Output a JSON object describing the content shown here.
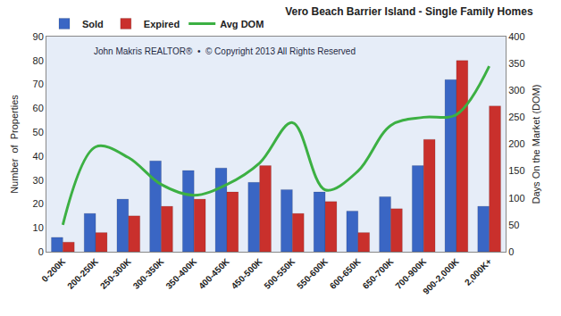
{
  "chart_data": {
    "type": "bar",
    "title": "Vero Beach Barrier Island - Single Family Homes",
    "annotations": [
      "John Makris REALTOR®  •  © Copyright 2013 All Rights Reserved"
    ],
    "y_label": "Number  of  Properties",
    "y2_label": "Days On the Market (DOM)",
    "categories": [
      "0-200K",
      "200-250K",
      "250-300K",
      "300-350K",
      "350-400K",
      "400-450K",
      "450-500K",
      "500-550K",
      "550-600K",
      "600-650K",
      "650-700K",
      "700-900K",
      "900-2,000K",
      "2,000K+"
    ],
    "series": [
      {
        "name": "Sold",
        "type": "bar",
        "color": "#3a66c4",
        "values": [
          6,
          16,
          22,
          38,
          34,
          35,
          29,
          26,
          25,
          17,
          23,
          36,
          72,
          19
        ]
      },
      {
        "name": "Expired",
        "type": "bar",
        "color": "#c9302c",
        "values": [
          4,
          8,
          15,
          19,
          22,
          25,
          36,
          16,
          21,
          8,
          18,
          47,
          80,
          61
        ]
      },
      {
        "name": "Avg DOM",
        "type": "line",
        "axis": "y2",
        "color": "#3cb043",
        "line_style": "solid",
        "values": [
          50,
          195,
          175,
          125,
          105,
          125,
          165,
          240,
          115,
          150,
          235,
          250,
          255,
          345
        ]
      }
    ],
    "ylim": [
      0,
      90
    ],
    "yticks": [
      0,
      10,
      20,
      30,
      40,
      50,
      60,
      70,
      80,
      90
    ],
    "y2lim": [
      0,
      400
    ],
    "y2ticks": [
      0,
      50,
      100,
      150,
      200,
      250,
      300,
      350,
      400
    ],
    "grid": false,
    "legend": "top left"
  }
}
